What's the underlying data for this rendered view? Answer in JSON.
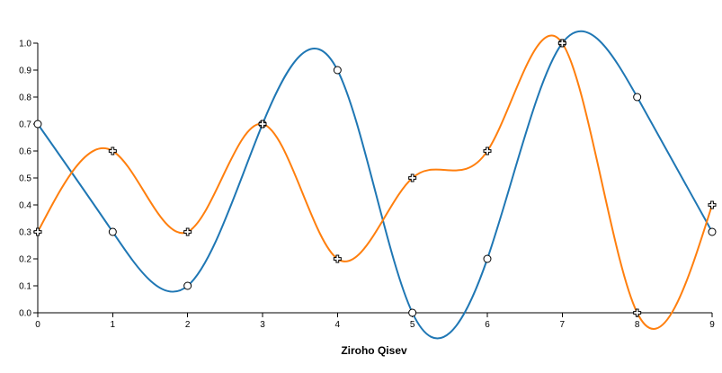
{
  "chart_data": {
    "type": "line",
    "title": "",
    "xlabel": "Ziroho Qisev",
    "ylabel": "",
    "x": [
      0,
      1,
      2,
      3,
      4,
      5,
      6,
      7,
      8,
      9
    ],
    "xlim": [
      0,
      9
    ],
    "ylim": [
      0,
      1
    ],
    "x_ticks": [
      "0",
      "1",
      "2",
      "3",
      "4",
      "5",
      "6",
      "7",
      "8",
      "9"
    ],
    "y_ticks": [
      "0.0",
      "0.1",
      "0.2",
      "0.3",
      "0.4",
      "0.5",
      "0.6",
      "0.7",
      "0.8",
      "0.9",
      "1.0"
    ],
    "grid": false,
    "curve": "smooth",
    "series": [
      {
        "color": "#1f77b4",
        "marker": "circle",
        "values": [
          0.7,
          0.3,
          0.1,
          0.7,
          0.9,
          0.0,
          0.2,
          1.0,
          0.8,
          0.3
        ]
      },
      {
        "color": "#ff7f0e",
        "marker": "cross",
        "values": [
          0.3,
          0.6,
          0.3,
          0.7,
          0.2,
          0.5,
          0.6,
          1.0,
          0.0,
          0.4
        ]
      }
    ]
  }
}
